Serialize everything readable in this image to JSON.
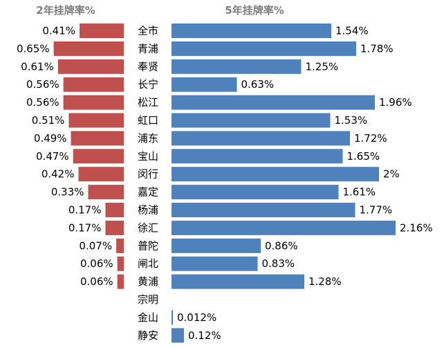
{
  "chart_data": [
    {
      "type": "bar",
      "orientation": "horizontal",
      "direction": "leftward",
      "title": "2年挂牌率%",
      "color": "#c0504d",
      "categories": [
        "全市",
        "青浦",
        "奉贤",
        "长宁",
        "松江",
        "虹口",
        "浦东",
        "宝山",
        "闵行",
        "嘉定",
        "杨浦",
        "徐汇",
        "普陀",
        "闸北",
        "黄浦",
        "宗明",
        "金山",
        "静安"
      ],
      "values": [
        0.41,
        0.65,
        0.61,
        0.56,
        0.56,
        0.51,
        0.49,
        0.47,
        0.42,
        0.33,
        0.17,
        0.17,
        0.07,
        0.06,
        0.06,
        null,
        null,
        null
      ],
      "value_labels": [
        "0.41%",
        "0.65%",
        "0.61%",
        "0.56%",
        "0.56%",
        "0.51%",
        "0.49%",
        "0.47%",
        "0.42%",
        "0.33%",
        "0.17%",
        "0.17%",
        "0.07%",
        "0.06%",
        "0.06%",
        "",
        "",
        ""
      ],
      "xlim": [
        0,
        0.7
      ]
    },
    {
      "type": "bar",
      "orientation": "horizontal",
      "direction": "rightward",
      "title": "5年挂牌率%",
      "color": "#4f81bd",
      "categories": [
        "全市",
        "青浦",
        "奉贤",
        "长宁",
        "松江",
        "虹口",
        "浦东",
        "宝山",
        "闵行",
        "嘉定",
        "杨浦",
        "徐汇",
        "普陀",
        "闸北",
        "黄浦",
        "宗明",
        "金山",
        "静安"
      ],
      "values": [
        1.54,
        1.78,
        1.25,
        0.63,
        1.96,
        1.53,
        1.72,
        1.65,
        2.0,
        1.61,
        1.77,
        2.16,
        0.86,
        0.83,
        1.28,
        null,
        0.012,
        0.12
      ],
      "value_labels": [
        "1.54%",
        "1.78%",
        "1.25%",
        "0.63%",
        "1.96%",
        "1.53%",
        "1.72%",
        "1.65%",
        "2%",
        "1.61%",
        "1.77%",
        "2.16%",
        "0.86%",
        "0.83%",
        "1.28%",
        "",
        "0.012%",
        "0.12%"
      ],
      "xlim": [
        0,
        2.25
      ]
    }
  ]
}
